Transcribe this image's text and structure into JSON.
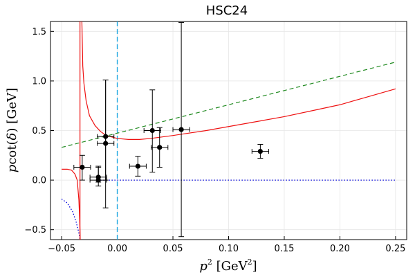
{
  "chart_data": {
    "type": "scatter",
    "title": "HSC24",
    "xlabel": {
      "base": "p",
      "sup": "2",
      "unit_open": " [GeV",
      "unit_sup": "2",
      "unit_close": "]"
    },
    "ylabel": {
      "prefix": "p",
      "func": "cot(",
      "delta": "δ",
      "suffix": ") [GeV]"
    },
    "xlim": [
      -0.06,
      0.26
    ],
    "ylim": [
      -0.6,
      1.6
    ],
    "xticks": [
      -0.05,
      0.0,
      0.05,
      0.1,
      0.15,
      0.2,
      0.25
    ],
    "xtick_labels": [
      "−0.05",
      "0.00",
      "0.05",
      "0.10",
      "0.15",
      "0.20",
      "0.25"
    ],
    "yticks": [
      -0.5,
      0.0,
      0.5,
      1.0,
      1.5
    ],
    "ytick_labels": [
      "−0.5",
      "0.0",
      "0.5",
      "1.0",
      "1.5"
    ],
    "grid": true,
    "vertical_line": {
      "x": 0.0,
      "color": "#1ca6e0",
      "style": "dashed"
    },
    "series": [
      {
        "name": "green-dashed",
        "kind": "line",
        "color": "#228b22",
        "style": "dashed",
        "x": [
          -0.05,
          0.25
        ],
        "y": [
          0.33,
          1.19
        ]
      },
      {
        "name": "blue-dotted-zero",
        "kind": "line",
        "color": "#0000dd",
        "style": "dotted",
        "x": [
          -0.015,
          0.25
        ],
        "y": [
          0.0,
          0.0
        ]
      },
      {
        "name": "blue-dotted-left",
        "kind": "line",
        "color": "#0000dd",
        "style": "dotted",
        "x": [
          -0.05,
          -0.045,
          -0.04,
          -0.037,
          -0.035,
          -0.034,
          -0.0335
        ],
        "y": [
          -0.19,
          -0.23,
          -0.32,
          -0.42,
          -0.51,
          -0.56,
          -0.6
        ]
      },
      {
        "name": "red-left-branch",
        "kind": "line",
        "color": "#ee1111",
        "style": "solid",
        "x": [
          -0.05,
          -0.045,
          -0.041,
          -0.038,
          -0.036,
          -0.0345,
          -0.0338,
          -0.0333
        ],
        "y": [
          0.11,
          0.11,
          0.1,
          0.06,
          0.0,
          -0.2,
          -0.4,
          -0.6
        ]
      },
      {
        "name": "red-right-branch",
        "kind": "line",
        "color": "#ee1111",
        "style": "solid",
        "x": [
          -0.0318,
          -0.031,
          -0.03,
          -0.028,
          -0.025,
          -0.02,
          -0.015,
          -0.01,
          0.0,
          0.01,
          0.02,
          0.03,
          0.05,
          0.08,
          0.1,
          0.125,
          0.15,
          0.175,
          0.2,
          0.225,
          0.25
        ],
        "y": [
          1.6,
          1.15,
          0.98,
          0.8,
          0.65,
          0.55,
          0.49,
          0.45,
          0.42,
          0.41,
          0.41,
          0.42,
          0.45,
          0.5,
          0.54,
          0.59,
          0.64,
          0.7,
          0.76,
          0.84,
          0.92
        ]
      },
      {
        "name": "red-vertical-asymptote",
        "kind": "line",
        "color": "#ee1111",
        "style": "solid",
        "x": [
          -0.0335,
          -0.0335
        ],
        "y": [
          -0.6,
          1.6
        ]
      }
    ],
    "points": [
      {
        "x": -0.0315,
        "y": 0.13,
        "xerr": 0.0075,
        "yerr_lo": 0.13,
        "yerr_hi": 0.12
      },
      {
        "x": -0.017,
        "y": 0.03,
        "xerr": 0.0075,
        "yerr_lo": 0.05,
        "yerr_hi": 0.1
      },
      {
        "x": -0.017,
        "y": 0.0,
        "xerr": 0.0075,
        "yerr_lo": 0.06,
        "yerr_hi": 0.14
      },
      {
        "x": -0.0105,
        "y": 0.37,
        "xerr": 0.0075,
        "yerr_lo": 0.65,
        "yerr_hi": 0.64
      },
      {
        "x": -0.0105,
        "y": 0.44,
        "xerr": 0.0075,
        "yerr_lo": 0.44,
        "yerr_hi": 0.57
      },
      {
        "x": 0.0185,
        "y": 0.14,
        "xerr": 0.0075,
        "yerr_lo": 0.1,
        "yerr_hi": 0.1
      },
      {
        "x": 0.0315,
        "y": 0.5,
        "xerr": 0.0075,
        "yerr_lo": 0.42,
        "yerr_hi": 0.41
      },
      {
        "x": 0.038,
        "y": 0.33,
        "xerr": 0.0075,
        "yerr_lo": 0.2,
        "yerr_hi": 0.2
      },
      {
        "x": 0.0575,
        "y": 0.51,
        "xerr": 0.0075,
        "yerr_lo": 1.08,
        "yerr_hi": 1.08
      },
      {
        "x": 0.1285,
        "y": 0.29,
        "xerr": 0.0075,
        "yerr_lo": 0.07,
        "yerr_hi": 0.07
      }
    ],
    "point_color": "#000000"
  }
}
